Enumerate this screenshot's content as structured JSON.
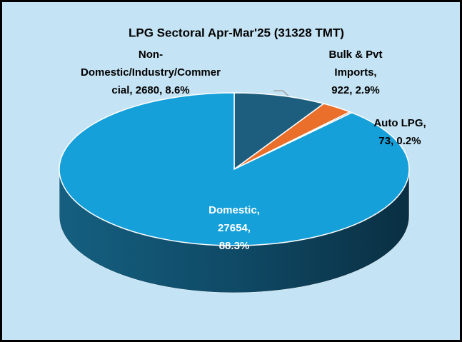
{
  "chart_data": {
    "type": "pie3d",
    "title": "LPG Sectoral Apr-Mar'25 (31328 TMT)",
    "values": [
      2680,
      922,
      73,
      27654
    ],
    "value_labels": [
      [
        "Non-",
        "Domestic/Industry/Commer",
        "cial, 2680, 8.6%"
      ],
      [
        "Bulk & Pvt",
        "Imports,",
        "922, 2.9%"
      ],
      [
        "Auto LPG,",
        "73, 0.2%"
      ],
      [
        "Domestic,",
        "27654,",
        "88.3%"
      ]
    ],
    "colors": [
      "#1d5e7e",
      "#ea6f2a",
      "#8a8a8a",
      "#15a0da"
    ]
  }
}
